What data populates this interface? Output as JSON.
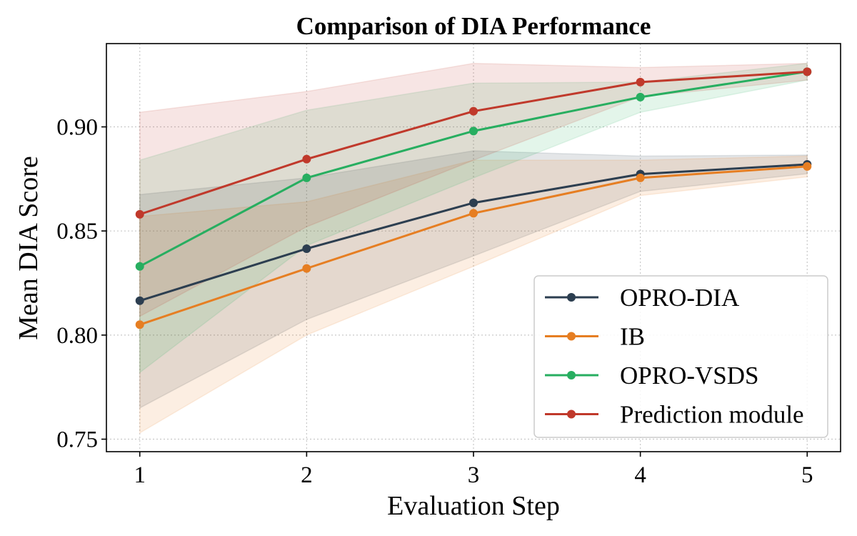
{
  "chart_data": {
    "type": "line",
    "title": "Comparison of DIA Performance",
    "xlabel": "Evaluation Step",
    "ylabel": "Mean DIA Score",
    "x": [
      1,
      2,
      3,
      4,
      5
    ],
    "x_tick_labels": [
      "1",
      "2",
      "3",
      "4",
      "5"
    ],
    "y_ticks": [
      0.75,
      0.8,
      0.85,
      0.9
    ],
    "y_tick_labels": [
      "0.75",
      "0.80",
      "0.85",
      "0.90"
    ],
    "xlim": [
      0.8,
      5.2
    ],
    "ylim": [
      0.744,
      0.94
    ],
    "grid": true,
    "legend_position": "lower-right",
    "series": [
      {
        "name": "OPRO-DIA",
        "color": "#2c3e50",
        "values": [
          0.8165,
          0.8415,
          0.8635,
          0.8773,
          0.882
        ],
        "lower": [
          0.765,
          0.8075,
          0.838,
          0.869,
          0.8775
        ],
        "upper": [
          0.8675,
          0.8755,
          0.8885,
          0.886,
          0.8865
        ]
      },
      {
        "name": "IB",
        "color": "#e67e22",
        "values": [
          0.805,
          0.832,
          0.8585,
          0.8755,
          0.881
        ],
        "lower": [
          0.753,
          0.8,
          0.833,
          0.867,
          0.876
        ],
        "upper": [
          0.857,
          0.864,
          0.884,
          0.884,
          0.886
        ]
      },
      {
        "name": "OPRO-VSDS",
        "color": "#27ae60",
        "values": [
          0.833,
          0.8755,
          0.898,
          0.9143,
          0.9265
        ],
        "lower": [
          0.782,
          0.843,
          0.8755,
          0.907,
          0.9225
        ],
        "upper": [
          0.884,
          0.908,
          0.921,
          0.9215,
          0.9305
        ]
      },
      {
        "name": "Prediction module",
        "color": "#c0392b",
        "values": [
          0.858,
          0.8845,
          0.9075,
          0.9215,
          0.9265
        ],
        "lower": [
          0.809,
          0.852,
          0.884,
          0.9145,
          0.9225
        ],
        "upper": [
          0.907,
          0.917,
          0.9305,
          0.9285,
          0.9305
        ]
      }
    ]
  }
}
